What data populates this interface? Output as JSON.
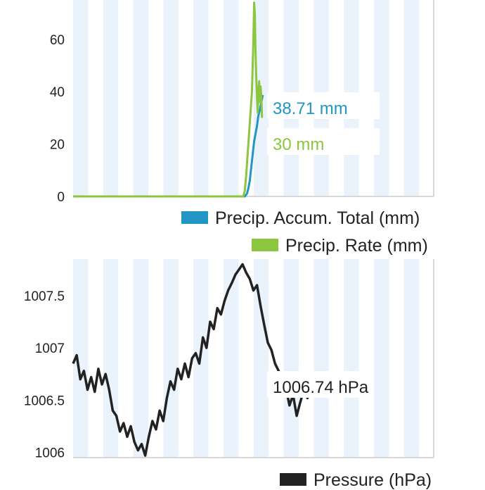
{
  "colors": {
    "accum": "#2196c4",
    "rate": "#8cc63f",
    "pressure": "#222222",
    "band": "#eaf3fb",
    "axis": "#cccccc",
    "label_bg": "#ffffff"
  },
  "chart_data": [
    {
      "type": "line",
      "title": "",
      "xlabel": "",
      "ylabel": "",
      "ylim": [
        0,
        75
      ],
      "yticks": [
        "0",
        "20",
        "40",
        "60"
      ],
      "series": [
        {
          "name": "Precip. Accum. Total (mm)",
          "color_key": "accum",
          "end_label": "38.71 mm",
          "values": [
            [
              0,
              0
            ],
            [
              0.476,
              0
            ],
            [
              0.482,
              1
            ],
            [
              0.486,
              3
            ],
            [
              0.49,
              6
            ],
            [
              0.494,
              11
            ],
            [
              0.498,
              16
            ],
            [
              0.502,
              21
            ],
            [
              0.506,
              24
            ],
            [
              0.51,
              27
            ],
            [
              0.514,
              31
            ],
            [
              0.518,
              33
            ],
            [
              0.522,
              36
            ],
            [
              0.526,
              38.71
            ]
          ]
        },
        {
          "name": "Precip. Rate (mm)",
          "color_key": "rate",
          "end_label": "30 mm",
          "values": [
            [
              0,
              0
            ],
            [
              0.472,
              0
            ],
            [
              0.476,
              2
            ],
            [
              0.48,
              8
            ],
            [
              0.484,
              16
            ],
            [
              0.488,
              24
            ],
            [
              0.492,
              32
            ],
            [
              0.496,
              40
            ],
            [
              0.5,
              60
            ],
            [
              0.502,
              74
            ],
            [
              0.504,
              70
            ],
            [
              0.506,
              55
            ],
            [
              0.508,
              45
            ],
            [
              0.51,
              38
            ],
            [
              0.512,
              32
            ],
            [
              0.514,
              40
            ],
            [
              0.516,
              44
            ],
            [
              0.518,
              36
            ],
            [
              0.52,
              42
            ],
            [
              0.522,
              38
            ],
            [
              0.524,
              30
            ]
          ]
        }
      ],
      "legend": [
        "Precip. Accum. Total (mm)",
        "Precip. Rate (mm)"
      ],
      "legend_position": "bottom-right",
      "grid": "alternating vertical bands"
    },
    {
      "type": "line",
      "title": "",
      "xlabel": "",
      "ylabel": "",
      "ylim": [
        1005.95,
        1007.85
      ],
      "yticks": [
        "1006",
        "1006.5",
        "1007",
        "1007.5"
      ],
      "series": [
        {
          "name": "Pressure (hPa)",
          "color_key": "pressure",
          "end_label": "1006.74 hPa",
          "values": [
            [
              0,
              1006.85
            ],
            [
              0.01,
              1006.93
            ],
            [
              0.02,
              1006.7
            ],
            [
              0.03,
              1006.78
            ],
            [
              0.04,
              1006.6
            ],
            [
              0.05,
              1006.72
            ],
            [
              0.06,
              1006.58
            ],
            [
              0.07,
              1006.8
            ],
            [
              0.08,
              1006.65
            ],
            [
              0.09,
              1006.75
            ],
            [
              0.1,
              1006.6
            ],
            [
              0.11,
              1006.4
            ],
            [
              0.12,
              1006.35
            ],
            [
              0.13,
              1006.2
            ],
            [
              0.14,
              1006.28
            ],
            [
              0.15,
              1006.15
            ],
            [
              0.16,
              1006.25
            ],
            [
              0.17,
              1006.1
            ],
            [
              0.18,
              1006.02
            ],
            [
              0.19,
              1006.08
            ],
            [
              0.2,
              1005.97
            ],
            [
              0.21,
              1006.15
            ],
            [
              0.22,
              1006.3
            ],
            [
              0.23,
              1006.22
            ],
            [
              0.24,
              1006.4
            ],
            [
              0.25,
              1006.3
            ],
            [
              0.26,
              1006.52
            ],
            [
              0.27,
              1006.68
            ],
            [
              0.28,
              1006.6
            ],
            [
              0.29,
              1006.8
            ],
            [
              0.3,
              1006.7
            ],
            [
              0.31,
              1006.85
            ],
            [
              0.32,
              1006.72
            ],
            [
              0.33,
              1006.9
            ],
            [
              0.34,
              1006.95
            ],
            [
              0.35,
              1006.85
            ],
            [
              0.36,
              1007.1
            ],
            [
              0.37,
              1007.0
            ],
            [
              0.38,
              1007.25
            ],
            [
              0.39,
              1007.18
            ],
            [
              0.4,
              1007.38
            ],
            [
              0.41,
              1007.32
            ],
            [
              0.42,
              1007.45
            ],
            [
              0.43,
              1007.55
            ],
            [
              0.44,
              1007.62
            ],
            [
              0.45,
              1007.7
            ],
            [
              0.46,
              1007.75
            ],
            [
              0.47,
              1007.8
            ],
            [
              0.48,
              1007.72
            ],
            [
              0.49,
              1007.66
            ],
            [
              0.5,
              1007.55
            ],
            [
              0.51,
              1007.6
            ],
            [
              0.52,
              1007.4
            ],
            [
              0.53,
              1007.22
            ],
            [
              0.54,
              1007.05
            ],
            [
              0.55,
              1006.98
            ],
            [
              0.56,
              1006.85
            ],
            [
              0.57,
              1006.78
            ],
            [
              0.58,
              1006.7
            ],
            [
              0.59,
              1006.62
            ],
            [
              0.6,
              1006.45
            ],
            [
              0.61,
              1006.55
            ],
            [
              0.62,
              1006.35
            ],
            [
              0.63,
              1006.48
            ],
            [
              0.64,
              1006.6
            ],
            [
              0.65,
              1006.52
            ],
            [
              0.66,
              1006.65
            ],
            [
              0.67,
              1006.74
            ]
          ]
        }
      ],
      "legend": [
        "Pressure (hPa)"
      ],
      "legend_position": "bottom-right",
      "grid": "alternating vertical bands"
    }
  ]
}
